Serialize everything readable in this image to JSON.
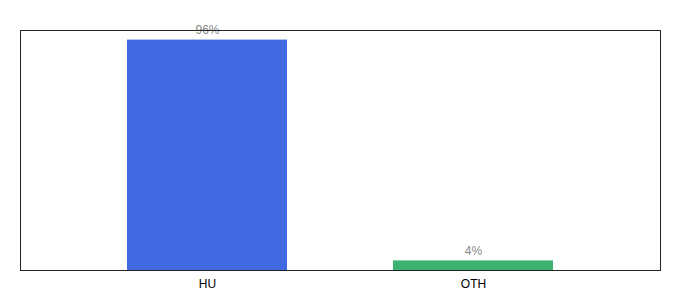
{
  "chart_data": {
    "type": "bar",
    "categories": [
      "HU",
      "OTH"
    ],
    "values": [
      96,
      4
    ],
    "value_labels": [
      "96%",
      "4%"
    ],
    "colors": [
      "#4169e1",
      "#3cb371"
    ],
    "ylim": [
      0,
      100
    ],
    "data_labels": true,
    "tick_labels": "x"
  }
}
